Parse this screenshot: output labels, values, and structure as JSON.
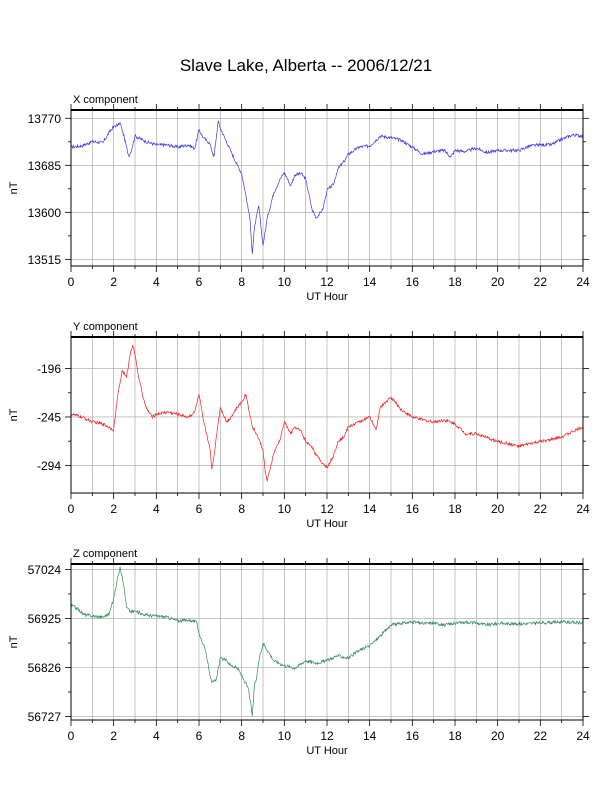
{
  "title": "Slave Lake, Alberta -- 2006/12/21",
  "chart_data": [
    {
      "type": "line",
      "subtitle": "X component",
      "xlabel": "UT Hour",
      "ylabel": "nT",
      "color": "#3b3bdd",
      "xlim": [
        0,
        24
      ],
      "ylim": [
        13503,
        13785
      ],
      "xticks": [
        0,
        2,
        4,
        6,
        8,
        10,
        12,
        14,
        16,
        18,
        20,
        22,
        24
      ],
      "yticks": [
        13515,
        13600,
        13685,
        13770
      ],
      "grid": true,
      "series": [
        {
          "x": [
            0,
            0.5,
            1.0,
            1.5,
            1.8,
            2.0,
            2.2,
            2.3,
            2.5,
            2.7,
            2.8,
            3.0,
            3.5,
            4.0,
            4.5,
            5.0,
            5.5,
            5.8,
            6.0,
            6.2,
            6.5,
            6.7,
            6.9,
            7.0,
            7.2,
            7.5,
            7.8,
            8.0,
            8.2,
            8.4,
            8.5,
            8.6,
            8.8,
            9.0,
            9.2,
            9.5,
            9.8,
            10.0,
            10.3,
            10.5,
            10.8,
            11.0,
            11.3,
            11.5,
            11.8,
            12.0,
            12.3,
            12.5,
            12.8,
            13.0,
            13.5,
            14.0,
            14.5,
            15.0,
            15.5,
            16.0,
            16.5,
            17.0,
            17.5,
            17.8,
            18.0,
            18.5,
            19.0,
            19.5,
            20.0,
            20.5,
            21.0,
            21.5,
            22.0,
            22.5,
            23.0,
            23.5,
            24.0
          ],
          "y": [
            13718,
            13720,
            13728,
            13726,
            13745,
            13755,
            13758,
            13762,
            13735,
            13702,
            13708,
            13738,
            13728,
            13722,
            13722,
            13718,
            13722,
            13715,
            13750,
            13735,
            13725,
            13700,
            13765,
            13752,
            13735,
            13710,
            13685,
            13670,
            13630,
            13585,
            13525,
            13572,
            13612,
            13540,
            13590,
            13635,
            13660,
            13672,
            13648,
            13668,
            13670,
            13660,
            13605,
            13590,
            13605,
            13640,
            13650,
            13678,
            13692,
            13705,
            13718,
            13720,
            13738,
            13735,
            13730,
            13718,
            13705,
            13710,
            13712,
            13700,
            13712,
            13710,
            13716,
            13708,
            13712,
            13712,
            13712,
            13720,
            13722,
            13722,
            13732,
            13740,
            13738
          ]
        }
      ]
    },
    {
      "type": "line",
      "subtitle": "Y component",
      "xlabel": "UT Hour",
      "ylabel": "nT",
      "color": "#ee2222",
      "xlim": [
        0,
        24
      ],
      "ylim": [
        -322,
        -164
      ],
      "xticks": [
        0,
        2,
        4,
        6,
        8,
        10,
        12,
        14,
        16,
        18,
        20,
        22,
        24
      ],
      "yticks": [
        -196,
        -245,
        -294
      ],
      "grid": true,
      "series": [
        {
          "x": [
            0,
            0.5,
            1.0,
            1.5,
            2.0,
            2.2,
            2.4,
            2.6,
            2.8,
            2.9,
            3.0,
            3.2,
            3.5,
            3.8,
            4.0,
            4.5,
            5.0,
            5.5,
            5.8,
            6.0,
            6.2,
            6.5,
            6.6,
            6.7,
            6.9,
            7.0,
            7.3,
            7.5,
            7.8,
            8.0,
            8.2,
            8.5,
            8.7,
            9.0,
            9.1,
            9.2,
            9.5,
            9.8,
            10.0,
            10.3,
            10.5,
            10.8,
            11.0,
            11.3,
            11.5,
            11.8,
            12.0,
            12.3,
            12.5,
            12.8,
            13.0,
            13.5,
            14.0,
            14.3,
            14.5,
            15.0,
            15.5,
            16.0,
            16.5,
            17.0,
            17.5,
            18.0,
            18.5,
            19.0,
            19.5,
            20.0,
            20.5,
            21.0,
            21.5,
            22.0,
            22.5,
            23.0,
            23.5,
            24.0
          ],
          "y": [
            -242,
            -245,
            -250,
            -252,
            -258,
            -222,
            -198,
            -205,
            -178,
            -172,
            -182,
            -208,
            -235,
            -245,
            -242,
            -240,
            -242,
            -245,
            -240,
            -222,
            -248,
            -275,
            -298,
            -285,
            -250,
            -235,
            -250,
            -245,
            -235,
            -230,
            -222,
            -255,
            -262,
            -278,
            -300,
            -310,
            -282,
            -268,
            -250,
            -262,
            -255,
            -260,
            -270,
            -275,
            -284,
            -292,
            -296,
            -285,
            -270,
            -265,
            -255,
            -250,
            -245,
            -258,
            -235,
            -225,
            -238,
            -245,
            -248,
            -250,
            -248,
            -252,
            -262,
            -262,
            -266,
            -270,
            -272,
            -275,
            -272,
            -270,
            -268,
            -265,
            -260,
            -255
          ]
        }
      ]
    },
    {
      "type": "line",
      "subtitle": "Z component",
      "xlabel": "UT Hour",
      "ylabel": "nT",
      "color": "#2e8b57",
      "xlim": [
        0,
        24
      ],
      "ylim": [
        56720,
        57035
      ],
      "xticks": [
        0,
        2,
        4,
        6,
        8,
        10,
        12,
        14,
        16,
        18,
        20,
        22,
        24
      ],
      "yticks": [
        57024,
        56925,
        56826,
        56727
      ],
      "grid": true,
      "series": [
        {
          "x": [
            0,
            0.3,
            0.6,
            1.0,
            1.5,
            1.8,
            2.0,
            2.2,
            2.3,
            2.5,
            2.6,
            2.8,
            3.0,
            3.5,
            4.0,
            4.5,
            5.0,
            5.5,
            5.9,
            6.0,
            6.3,
            6.6,
            6.8,
            7.0,
            7.3,
            7.5,
            7.8,
            8.0,
            8.3,
            8.4,
            8.5,
            8.6,
            8.7,
            8.8,
            9.0,
            9.3,
            9.5,
            10.0,
            10.5,
            11.0,
            11.5,
            12.0,
            12.5,
            13.0,
            13.5,
            14.0,
            14.5,
            15.0,
            15.5,
            16.0,
            16.5,
            17.0,
            17.5,
            18.0,
            18.5,
            19.0,
            19.5,
            20.0,
            21.0,
            22.0,
            23.0,
            24.0
          ],
          "y": [
            56952,
            56945,
            56933,
            56930,
            56928,
            56935,
            56965,
            57010,
            57030,
            56985,
            56948,
            56938,
            56940,
            56932,
            56930,
            56928,
            56920,
            56922,
            56918,
            56895,
            56860,
            56795,
            56800,
            56845,
            56840,
            56830,
            56825,
            56810,
            56785,
            56760,
            56728,
            56790,
            56805,
            56838,
            56875,
            56855,
            56840,
            56830,
            56825,
            56840,
            56835,
            56840,
            56850,
            56845,
            56860,
            56870,
            56890,
            56912,
            56915,
            56918,
            56915,
            56916,
            56912,
            56915,
            56918,
            56916,
            56912,
            56915,
            56914,
            56916,
            56918,
            56916
          ]
        }
      ]
    }
  ]
}
